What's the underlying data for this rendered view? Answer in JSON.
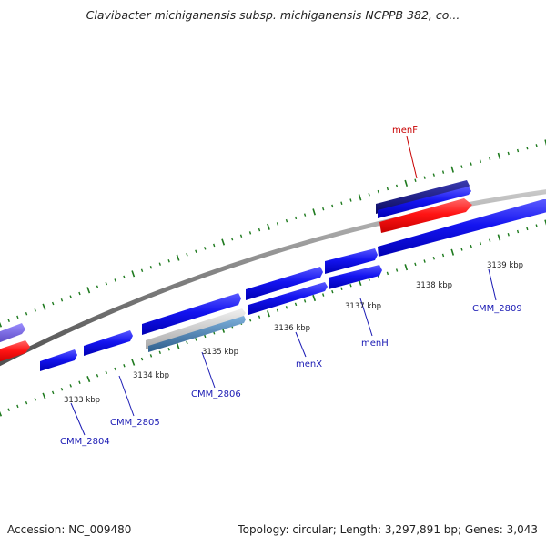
{
  "header": {
    "title": "Clavibacter michiganensis subsp. michiganensis NCPPB 382, co..."
  },
  "footer": {
    "accession_label": "Accession: NC_009480",
    "topology_label": "Topology: circular; Length: 3,297,891 bp; Genes: 3,043"
  },
  "colors": {
    "backbone": "#808080",
    "tick": "#1e7a1e",
    "gene_forward": "#1414f0",
    "gene_reverse": "#ff1414",
    "gene_dark": "#0a0a80",
    "gene_faded": "#6a5acd",
    "gene_gray": "#c8c8c8",
    "gene_steel": "#4682b4",
    "label_gene": "#1a1ab4",
    "label_highlight": "#c80000"
  },
  "ruler_labels": [
    "3133 kbp",
    "3134 kbp",
    "3135 kbp",
    "3136 kbp",
    "3137 kbp",
    "3138 kbp",
    "3139 kbp"
  ],
  "gene_labels": [
    "CMM_2804",
    "CMM_2805",
    "CMM_2806",
    "menX",
    "menH",
    "CMM_2809",
    "menF"
  ]
}
